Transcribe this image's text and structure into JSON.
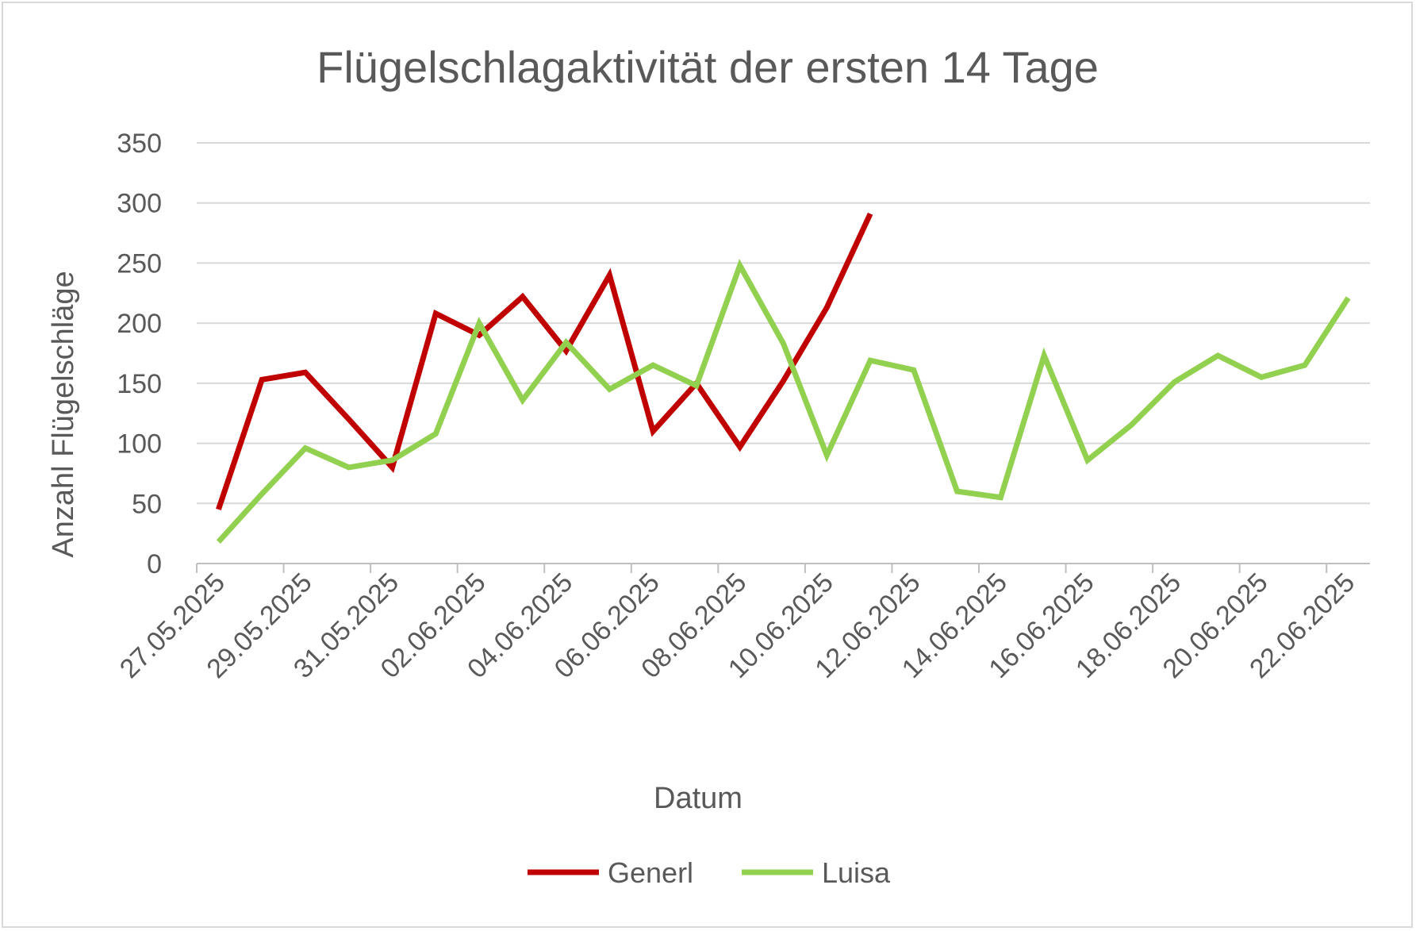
{
  "chart_data": {
    "type": "line",
    "title": "Flügelschlagaktivität der ersten 14 Tage",
    "xlabel": "Datum",
    "ylabel": "Anzahl Flügelschläge",
    "ylim": [
      0,
      350
    ],
    "yticks": [
      "0",
      "50",
      "100",
      "150",
      "200",
      "250",
      "300",
      "350"
    ],
    "xtick_labels": [
      "27.05.2025",
      "29.05.2025",
      "31.05.2025",
      "02.06.2025",
      "04.06.2025",
      "06.06.2025",
      "08.06.2025",
      "10.06.2025",
      "12.06.2025",
      "14.06.2025",
      "16.06.2025",
      "18.06.2025",
      "20.06.2025",
      "22.06.2025"
    ],
    "grid": true,
    "legend_position": "bottom",
    "series": [
      {
        "name": "Generl",
        "color": "#c00000",
        "x": [
          "27.05.2025",
          "28.05.2025",
          "29.05.2025",
          "30.05.2025",
          "31.05.2025",
          "01.06.2025",
          "02.06.2025",
          "03.06.2025",
          "04.06.2025",
          "05.06.2025",
          "06.06.2025",
          "07.06.2025",
          "08.06.2025",
          "09.06.2025",
          "10.06.2025",
          "11.06.2025"
        ],
        "values": [
          45,
          153,
          159,
          120,
          80,
          208,
          190,
          222,
          177,
          240,
          110,
          150,
          97,
          152,
          213,
          291
        ]
      },
      {
        "name": "Luisa",
        "color": "#92d050",
        "x": [
          "27.05.2025",
          "28.05.2025",
          "29.05.2025",
          "30.05.2025",
          "31.05.2025",
          "01.06.2025",
          "02.06.2025",
          "03.06.2025",
          "04.06.2025",
          "05.06.2025",
          "06.06.2025",
          "07.06.2025",
          "08.06.2025",
          "09.06.2025",
          "10.06.2025",
          "11.06.2025",
          "12.06.2025",
          "13.06.2025",
          "14.06.2025",
          "15.06.2025",
          "16.06.2025",
          "17.06.2025",
          "18.06.2025",
          "19.06.2025",
          "20.06.2025",
          "21.06.2025",
          "22.06.2025"
        ],
        "values": [
          18,
          58,
          96,
          80,
          86,
          108,
          200,
          136,
          184,
          145,
          165,
          148,
          248,
          183,
          90,
          169,
          161,
          60,
          55,
          173,
          86,
          115,
          151,
          173,
          155,
          165,
          221
        ]
      }
    ]
  }
}
